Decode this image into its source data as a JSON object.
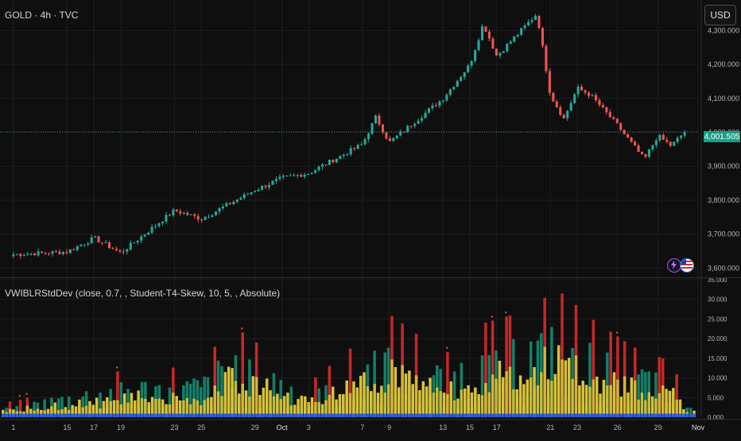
{
  "header": {
    "symbol_label": "GOLD · 4h · TVC",
    "currency": "USD"
  },
  "indicator": {
    "label": "VWIBLRStdDev (close, 0.7, , Student-T4-Skew, 10, 5, , Absolute)"
  },
  "last_price": "4,001.505",
  "colors": {
    "background": "#0f0f0f",
    "grid": "#1e1e1e",
    "up": "#26a69a",
    "down": "#ef5350",
    "price_line": "#16a085",
    "vol_red": "#c62828",
    "vol_green": "#138068",
    "vol_yellow": "#d7c33a",
    "vol_blue": "#2962ff"
  },
  "icons": [
    "lightning-icon",
    "us-flag-icon"
  ],
  "chart_data": [
    {
      "type": "candlestick",
      "title": "GOLD · 4h · TVC",
      "xlabel": "",
      "ylabel": "",
      "ylim": [
        3575,
        4390
      ],
      "y_ticks": [
        "4,300.000",
        "4,200.000",
        "4,100.000",
        "4,000.000",
        "3,900.000",
        "3,800.000",
        "3,700.000",
        "3,600.000"
      ],
      "x_ticks": [
        "1",
        "15",
        "17",
        "19",
        "23",
        "25",
        "29",
        "Oct",
        "3",
        "7",
        "9",
        "13",
        "15",
        "17",
        "21",
        "23",
        "26",
        "29",
        "Nov"
      ],
      "last_price": 4001.505,
      "series": [
        {
          "date": "Sep 11",
          "close": 3640
        },
        {
          "date": "Sep 15",
          "close": 3648
        },
        {
          "date": "Sep 17",
          "close": 3688
        },
        {
          "date": "Sep 19",
          "close": 3645
        },
        {
          "date": "Sep 23",
          "close": 3770
        },
        {
          "date": "Sep 25",
          "close": 3745
        },
        {
          "date": "Sep 29",
          "close": 3830
        },
        {
          "date": "Oct 1",
          "close": 3865
        },
        {
          "date": "Oct 3",
          "close": 3880
        },
        {
          "date": "Oct 7",
          "close": 3965
        },
        {
          "date": "Oct 8",
          "close": 4045
        },
        {
          "date": "Oct 9",
          "close": 3970
        },
        {
          "date": "Oct 13",
          "close": 4100
        },
        {
          "date": "Oct 15",
          "close": 4200
        },
        {
          "date": "Oct 16",
          "close": 4320
        },
        {
          "date": "Oct 17",
          "close": 4225
        },
        {
          "date": "Oct 20",
          "close": 4350
        },
        {
          "date": "Oct 21",
          "close": 4110
        },
        {
          "date": "Oct 22",
          "close": 4040
        },
        {
          "date": "Oct 23",
          "close": 4130
        },
        {
          "date": "Oct 24",
          "close": 4110
        },
        {
          "date": "Oct 26",
          "close": 4020
        },
        {
          "date": "Oct 28",
          "close": 3920
        },
        {
          "date": "Oct 29",
          "close": 3990
        },
        {
          "date": "Oct 30",
          "close": 3960
        },
        {
          "date": "Oct 31",
          "close": 4001.5
        }
      ]
    },
    {
      "type": "bar",
      "title": "VWIBLRStdDev (close, 0.7, , Student-T4-Skew, 10, 5, , Absolute)",
      "ylim": [
        0,
        35
      ],
      "y_ticks": [
        "35.000",
        "30.000",
        "25.000",
        "20.000",
        "15.000",
        "10.000",
        "5.000",
        "0.000"
      ],
      "series": [
        {
          "date": "Sep 11",
          "value": 4
        },
        {
          "date": "Sep 17",
          "value": 10
        },
        {
          "date": "Sep 19",
          "value": 12
        },
        {
          "date": "Sep 25",
          "value": 13
        },
        {
          "date": "Sep 27",
          "value": 24
        },
        {
          "date": "Oct 3",
          "value": 9
        },
        {
          "date": "Oct 9",
          "value": 26
        },
        {
          "date": "Oct 13",
          "value": 16
        },
        {
          "date": "Oct 16",
          "value": 24
        },
        {
          "date": "Oct 20",
          "value": 28
        },
        {
          "date": "Oct 21",
          "value": 33
        },
        {
          "date": "Oct 22",
          "value": 31
        },
        {
          "date": "Oct 24",
          "value": 25
        },
        {
          "date": "Oct 27",
          "value": 18
        },
        {
          "date": "Oct 30",
          "value": 14
        },
        {
          "date": "Oct 31",
          "value": 4
        }
      ]
    }
  ]
}
